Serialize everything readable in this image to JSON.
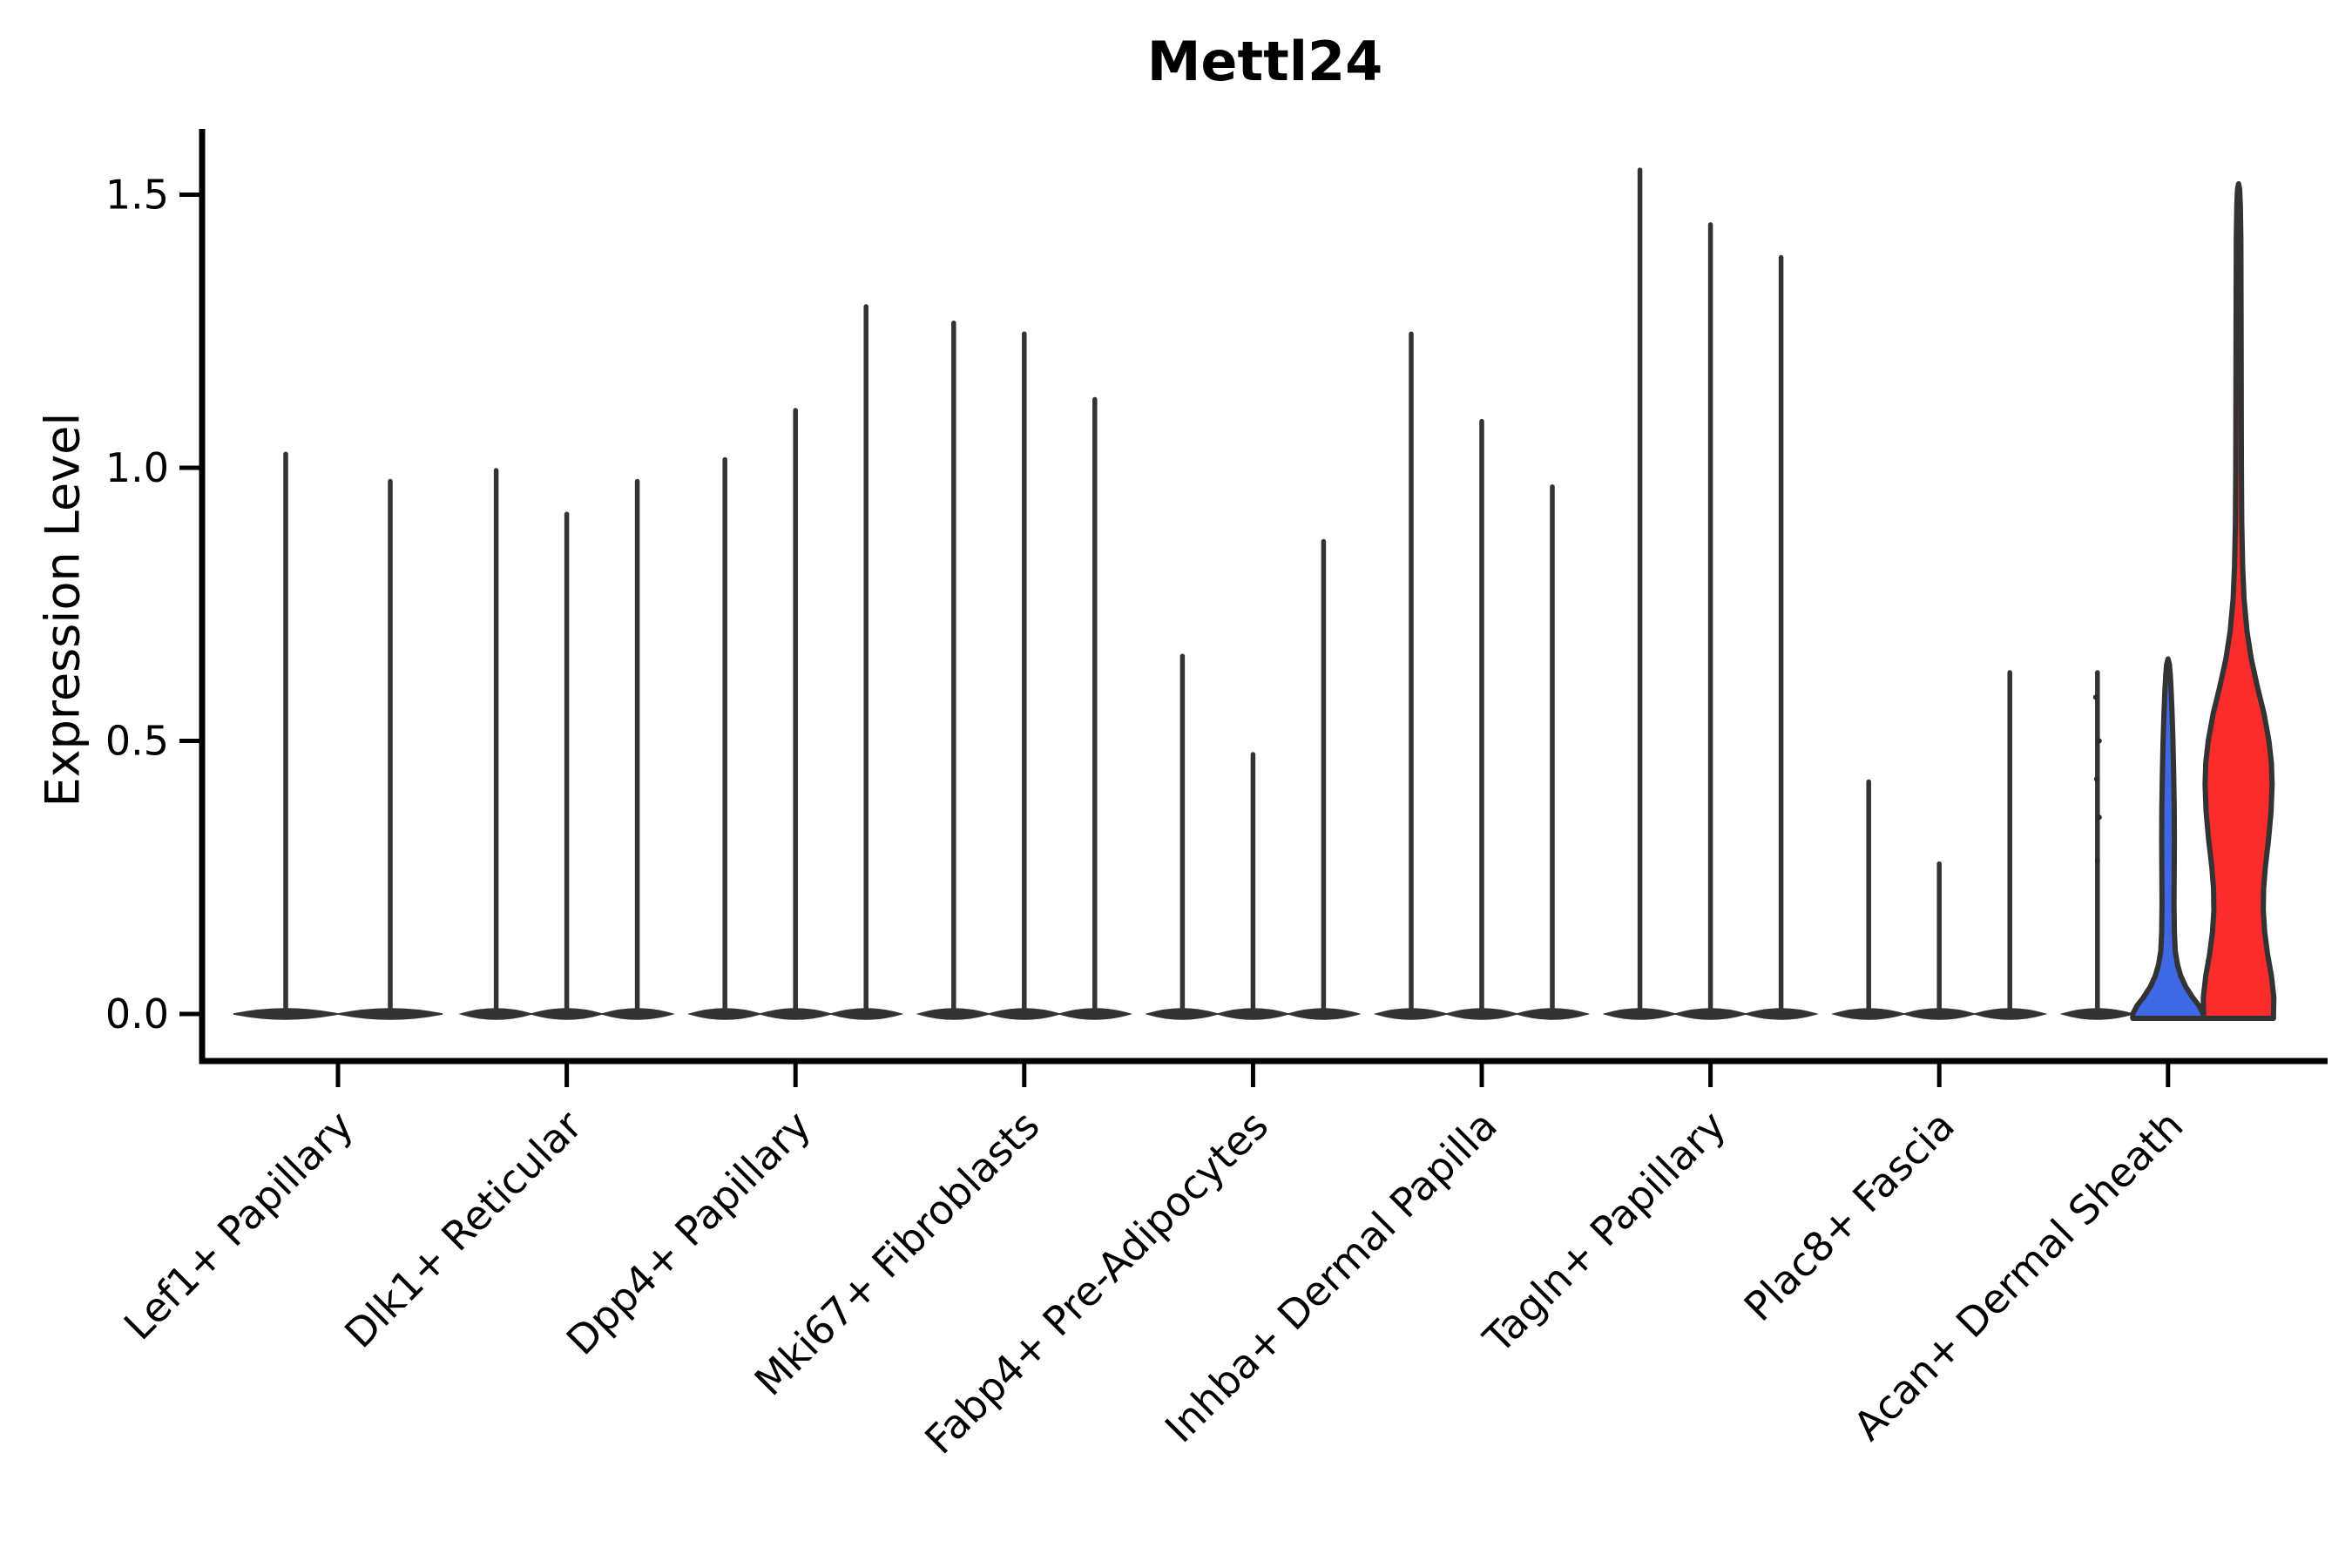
{
  "chart_data": {
    "type": "violin",
    "title": "Mettl24",
    "ylabel": "Expression Level",
    "xlabel": "",
    "grid": "off",
    "legend_position": "none",
    "y_ticks": [
      0.0,
      0.5,
      1.0,
      1.5
    ],
    "y_tick_labels": [
      "0.0",
      "0.5",
      "1.0",
      "1.5"
    ],
    "ylim": [
      -0.09,
      1.71
    ],
    "x_tick_rotation_deg": 45,
    "colors": {
      "violin_stroke": "#333333",
      "axis": "#000000",
      "text": "#000000",
      "highlight_blue": "#3F68E5",
      "highlight_red": "#FA2C2C",
      "background": "#ffffff"
    },
    "groups": [
      {
        "label": "Lef1+ Papillary",
        "violins": [
          {
            "kind": "spike",
            "max": 1.03
          },
          {
            "kind": "spike",
            "max": 0.98
          }
        ]
      },
      {
        "label": "Dlk1+ Reticular",
        "violins": [
          {
            "kind": "spike",
            "max": 1.0
          },
          {
            "kind": "spike",
            "max": 0.92
          },
          {
            "kind": "spike",
            "max": 0.98
          }
        ]
      },
      {
        "label": "Dpp4+ Papillary",
        "violins": [
          {
            "kind": "spike",
            "max": 1.02
          },
          {
            "kind": "spike",
            "max": 1.11
          },
          {
            "kind": "spike",
            "max": 1.3
          }
        ]
      },
      {
        "label": "Mki67+ Fibroblasts",
        "violins": [
          {
            "kind": "spike",
            "max": 1.27
          },
          {
            "kind": "spike",
            "max": 1.25
          },
          {
            "kind": "spike",
            "max": 1.13
          }
        ]
      },
      {
        "label": "Fabp4+ Pre-Adipocytes",
        "violins": [
          {
            "kind": "spike",
            "max": 0.66
          },
          {
            "kind": "spike",
            "max": 0.48
          },
          {
            "kind": "spike",
            "max": 0.87
          }
        ]
      },
      {
        "label": "Inhba+ Dermal Papilla",
        "violins": [
          {
            "kind": "spike",
            "max": 1.25
          },
          {
            "kind": "spike",
            "max": 1.09
          },
          {
            "kind": "spike",
            "max": 0.97
          }
        ]
      },
      {
        "label": "Tagln+ Papillary",
        "violins": [
          {
            "kind": "spike",
            "max": 1.55
          },
          {
            "kind": "spike",
            "max": 1.45
          },
          {
            "kind": "spike",
            "max": 1.39
          }
        ]
      },
      {
        "label": "Plac8+ Fascia",
        "violins": [
          {
            "kind": "spike",
            "max": 0.43
          },
          {
            "kind": "spike",
            "max": 0.28
          },
          {
            "kind": "spike",
            "max": 0.63
          }
        ]
      },
      {
        "label": "Acan+ Dermal Sheath",
        "violins": [
          {
            "kind": "spike",
            "max": 0.63,
            "points": [
              0.58,
              0.5,
              0.43,
              0.36,
              0.28
            ]
          },
          {
            "kind": "shaped",
            "max": 0.65,
            "fill": "#3F68E5",
            "profile": [
              [
                0,
                1.0
              ],
              [
                0.015,
                0.88
              ],
              [
                0.03,
                0.7
              ],
              [
                0.05,
                0.5
              ],
              [
                0.07,
                0.36
              ],
              [
                0.09,
                0.27
              ],
              [
                0.115,
                0.205
              ],
              [
                0.15,
                0.18
              ],
              [
                0.2,
                0.17
              ],
              [
                0.26,
                0.175
              ],
              [
                0.32,
                0.18
              ],
              [
                0.38,
                0.175
              ],
              [
                0.44,
                0.16
              ],
              [
                0.5,
                0.14
              ],
              [
                0.55,
                0.115
              ],
              [
                0.59,
                0.09
              ],
              [
                0.62,
                0.065
              ],
              [
                0.64,
                0.04
              ],
              [
                0.65,
                0.0
              ]
            ]
          },
          {
            "kind": "shaped",
            "max": 1.52,
            "fill": "#FA2C2C",
            "profile": [
              [
                0,
                0.99
              ],
              [
                0.03,
                1.0
              ],
              [
                0.07,
                0.93
              ],
              [
                0.11,
                0.82
              ],
              [
                0.15,
                0.74
              ],
              [
                0.19,
                0.7
              ],
              [
                0.23,
                0.71
              ],
              [
                0.27,
                0.76
              ],
              [
                0.32,
                0.85
              ],
              [
                0.37,
                0.92
              ],
              [
                0.42,
                0.95
              ],
              [
                0.46,
                0.93
              ],
              [
                0.5,
                0.86
              ],
              [
                0.55,
                0.72
              ],
              [
                0.6,
                0.53
              ],
              [
                0.65,
                0.36
              ],
              [
                0.7,
                0.24
              ],
              [
                0.76,
                0.155
              ],
              [
                0.82,
                0.115
              ],
              [
                0.9,
                0.09
              ],
              [
                1.0,
                0.08
              ],
              [
                1.15,
                0.075
              ],
              [
                1.3,
                0.07
              ],
              [
                1.42,
                0.065
              ],
              [
                1.48,
                0.05
              ],
              [
                1.51,
                0.03
              ],
              [
                1.52,
                0.0
              ]
            ]
          }
        ]
      }
    ]
  }
}
